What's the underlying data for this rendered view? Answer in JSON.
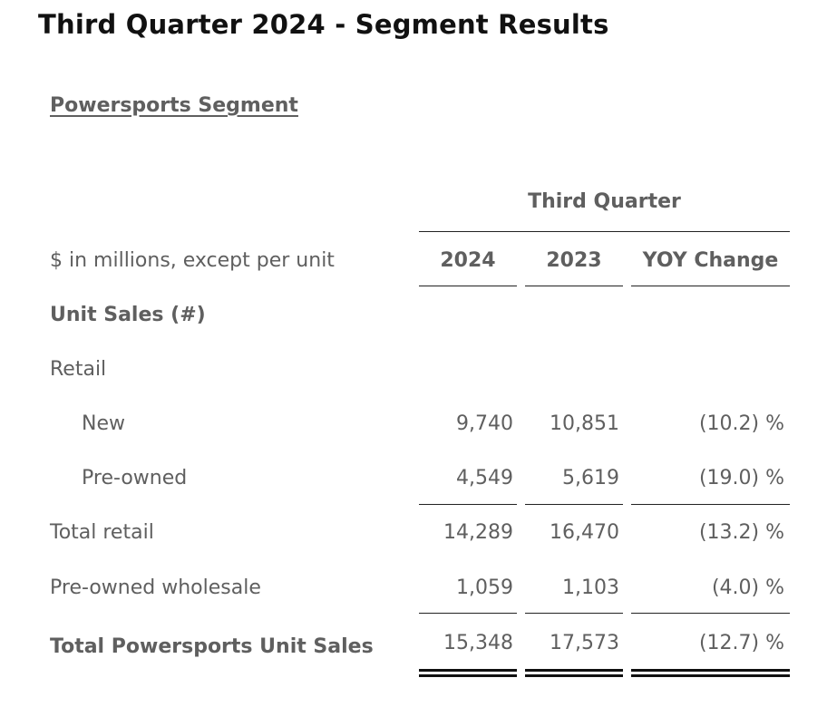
{
  "title": "Third Quarter 2024 - Segment Results",
  "segment_title": "Powersports Segment",
  "period_header": "Third Quarter",
  "columns": {
    "label_header": "$ in millions, except per unit",
    "col1": "2024",
    "col2": "2023",
    "col3": "YOY Change"
  },
  "rows": [
    {
      "label": "Unit Sales (#)",
      "c1": "",
      "c2": "",
      "c3": ""
    },
    {
      "label": "Retail",
      "c1": "",
      "c2": "",
      "c3": ""
    },
    {
      "label": "New",
      "c1": "9,740",
      "c2": "10,851",
      "c3": "(10.2) %"
    },
    {
      "label": "Pre-owned",
      "c1": "4,549",
      "c2": "5,619",
      "c3": "(19.0) %"
    },
    {
      "label": "Total retail",
      "c1": "14,289",
      "c2": "16,470",
      "c3": "(13.2) %"
    },
    {
      "label": "Pre-owned wholesale",
      "c1": "1,059",
      "c2": "1,103",
      "c3": "(4.0) %"
    },
    {
      "label": "Total Powersports Unit Sales",
      "c1": "15,348",
      "c2": "17,573",
      "c3": "(12.7) %"
    }
  ]
}
